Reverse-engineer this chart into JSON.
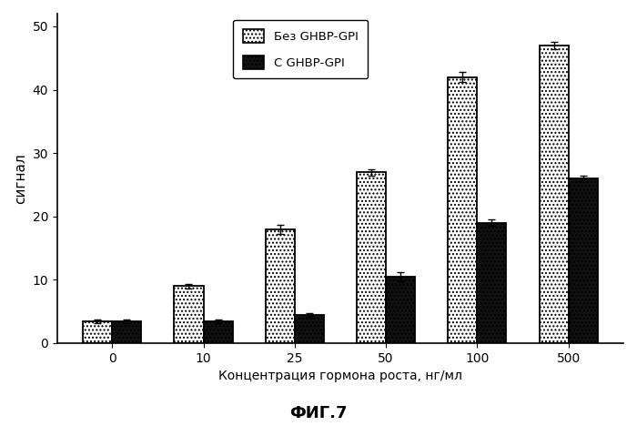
{
  "categories": [
    "0",
    "10",
    "25",
    "50",
    "100",
    "500"
  ],
  "white_bars": [
    3.5,
    9.0,
    18.0,
    27.0,
    42.0,
    47.0
  ],
  "black_bars": [
    3.5,
    3.5,
    4.5,
    10.5,
    19.0,
    26.0
  ],
  "white_errors": [
    0.3,
    0.4,
    0.7,
    0.5,
    0.8,
    0.6
  ],
  "black_errors": [
    0.3,
    0.3,
    0.3,
    0.7,
    0.5,
    0.5
  ],
  "ylabel": "сигнал",
  "xlabel": "Концентрация гормона роста, нг/мл",
  "title": "ФИГ.7",
  "legend_white": "Без GHBP-GPI",
  "legend_black": "С GHBP-GPI",
  "ylim": [
    0,
    52
  ],
  "yticks": [
    0,
    10,
    20,
    30,
    40,
    50
  ],
  "ytick_labels": [
    "0",
    "10",
    "20",
    "30",
    "40",
    "50"
  ],
  "bar_width": 0.32,
  "white_color": "#ffffff",
  "black_color": "#111111",
  "edge_color": "#000000",
  "bg_color": "#ffffff",
  "figure_bg": "#ffffff"
}
